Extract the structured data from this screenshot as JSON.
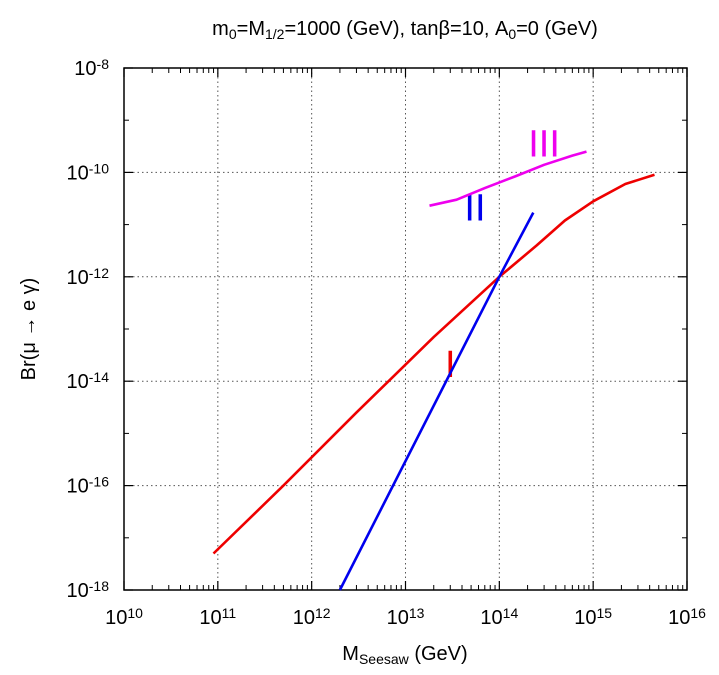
{
  "chart_data": {
    "type": "line",
    "title": {
      "parts": [
        {
          "t": "m"
        },
        {
          "t": "0",
          "sub": true
        },
        {
          "t": "=M"
        },
        {
          "t": "1/2",
          "sub": true
        },
        {
          "t": "=1000 (GeV), tanβ=10, A"
        },
        {
          "t": "0",
          "sub": true
        },
        {
          "t": "=0 (GeV)"
        }
      ]
    },
    "xlabel": {
      "parts": [
        {
          "t": "M"
        },
        {
          "t": "Seesaw",
          "sub": true
        },
        {
          "t": " (GeV)"
        }
      ]
    },
    "ylabel": "Br(μ → e γ)",
    "xscale": "log",
    "yscale": "log",
    "xlim": [
      10000000000.0,
      1e+16
    ],
    "ylim": [
      1e-18,
      1e-08
    ],
    "grid": true,
    "x_ticks": [
      {
        "base": "10",
        "exp": "10",
        "value": 10000000000.0
      },
      {
        "base": "10",
        "exp": "11",
        "value": 100000000000.0
      },
      {
        "base": "10",
        "exp": "12",
        "value": 1000000000000.0
      },
      {
        "base": "10",
        "exp": "13",
        "value": 10000000000000.0
      },
      {
        "base": "10",
        "exp": "14",
        "value": 100000000000000.0
      },
      {
        "base": "10",
        "exp": "15",
        "value": 1000000000000000.0
      },
      {
        "base": "10",
        "exp": "16",
        "value": 1e+16
      }
    ],
    "y_ticks": [
      {
        "base": "10",
        "exp": "-18",
        "value": 1e-18
      },
      {
        "base": "10",
        "exp": "-16",
        "value": 1e-16
      },
      {
        "base": "10",
        "exp": "-14",
        "value": 1e-14
      },
      {
        "base": "10",
        "exp": "-12",
        "value": 1e-12
      },
      {
        "base": "10",
        "exp": "-10",
        "value": 1e-10
      },
      {
        "base": "10",
        "exp": "-8",
        "value": 1e-08
      }
    ],
    "series": [
      {
        "label": "I",
        "color": "#ee0000",
        "label_pos": {
          "x": 30000000000000.0,
          "y": 1.2e-14
        },
        "points": [
          {
            "x": 90000000000.0,
            "y": 5e-18
          },
          {
            "x": 500000000000.0,
            "y": 1e-16
          },
          {
            "x": 3000000000000.0,
            "y": 2.5e-15
          },
          {
            "x": 20000000000000.0,
            "y": 7e-14
          },
          {
            "x": 100000000000000.0,
            "y": 1e-12
          },
          {
            "x": 250000000000000.0,
            "y": 4e-12
          },
          {
            "x": 500000000000000.0,
            "y": 1.2e-11
          },
          {
            "x": 1000000000000000.0,
            "y": 2.8e-11
          },
          {
            "x": 2200000000000000.0,
            "y": 6e-11
          },
          {
            "x": 4500000000000000.0,
            "y": 9e-11
          }
        ]
      },
      {
        "label": "II",
        "color": "#0000ee",
        "label_pos": {
          "x": 55000000000000.0,
          "y": 1.2e-11
        },
        "points": [
          {
            "x": 2000000000000.0,
            "y": 1e-18
          },
          {
            "x": 100000000000000.0,
            "y": 1e-12
          },
          {
            "x": 230000000000000.0,
            "y": 1.7e-11
          }
        ]
      },
      {
        "label": "III",
        "color": "#ee00ee",
        "label_pos": {
          "x": 300000000000000.0,
          "y": 2e-10
        },
        "points": [
          {
            "x": 18000000000000.0,
            "y": 2.3e-11
          },
          {
            "x": 35000000000000.0,
            "y": 3e-11
          },
          {
            "x": 70000000000000.0,
            "y": 5e-11
          },
          {
            "x": 150000000000000.0,
            "y": 8.5e-11
          },
          {
            "x": 300000000000000.0,
            "y": 1.4e-10
          },
          {
            "x": 600000000000000.0,
            "y": 2.1e-10
          },
          {
            "x": 850000000000000.0,
            "y": 2.5e-10
          }
        ]
      }
    ]
  }
}
